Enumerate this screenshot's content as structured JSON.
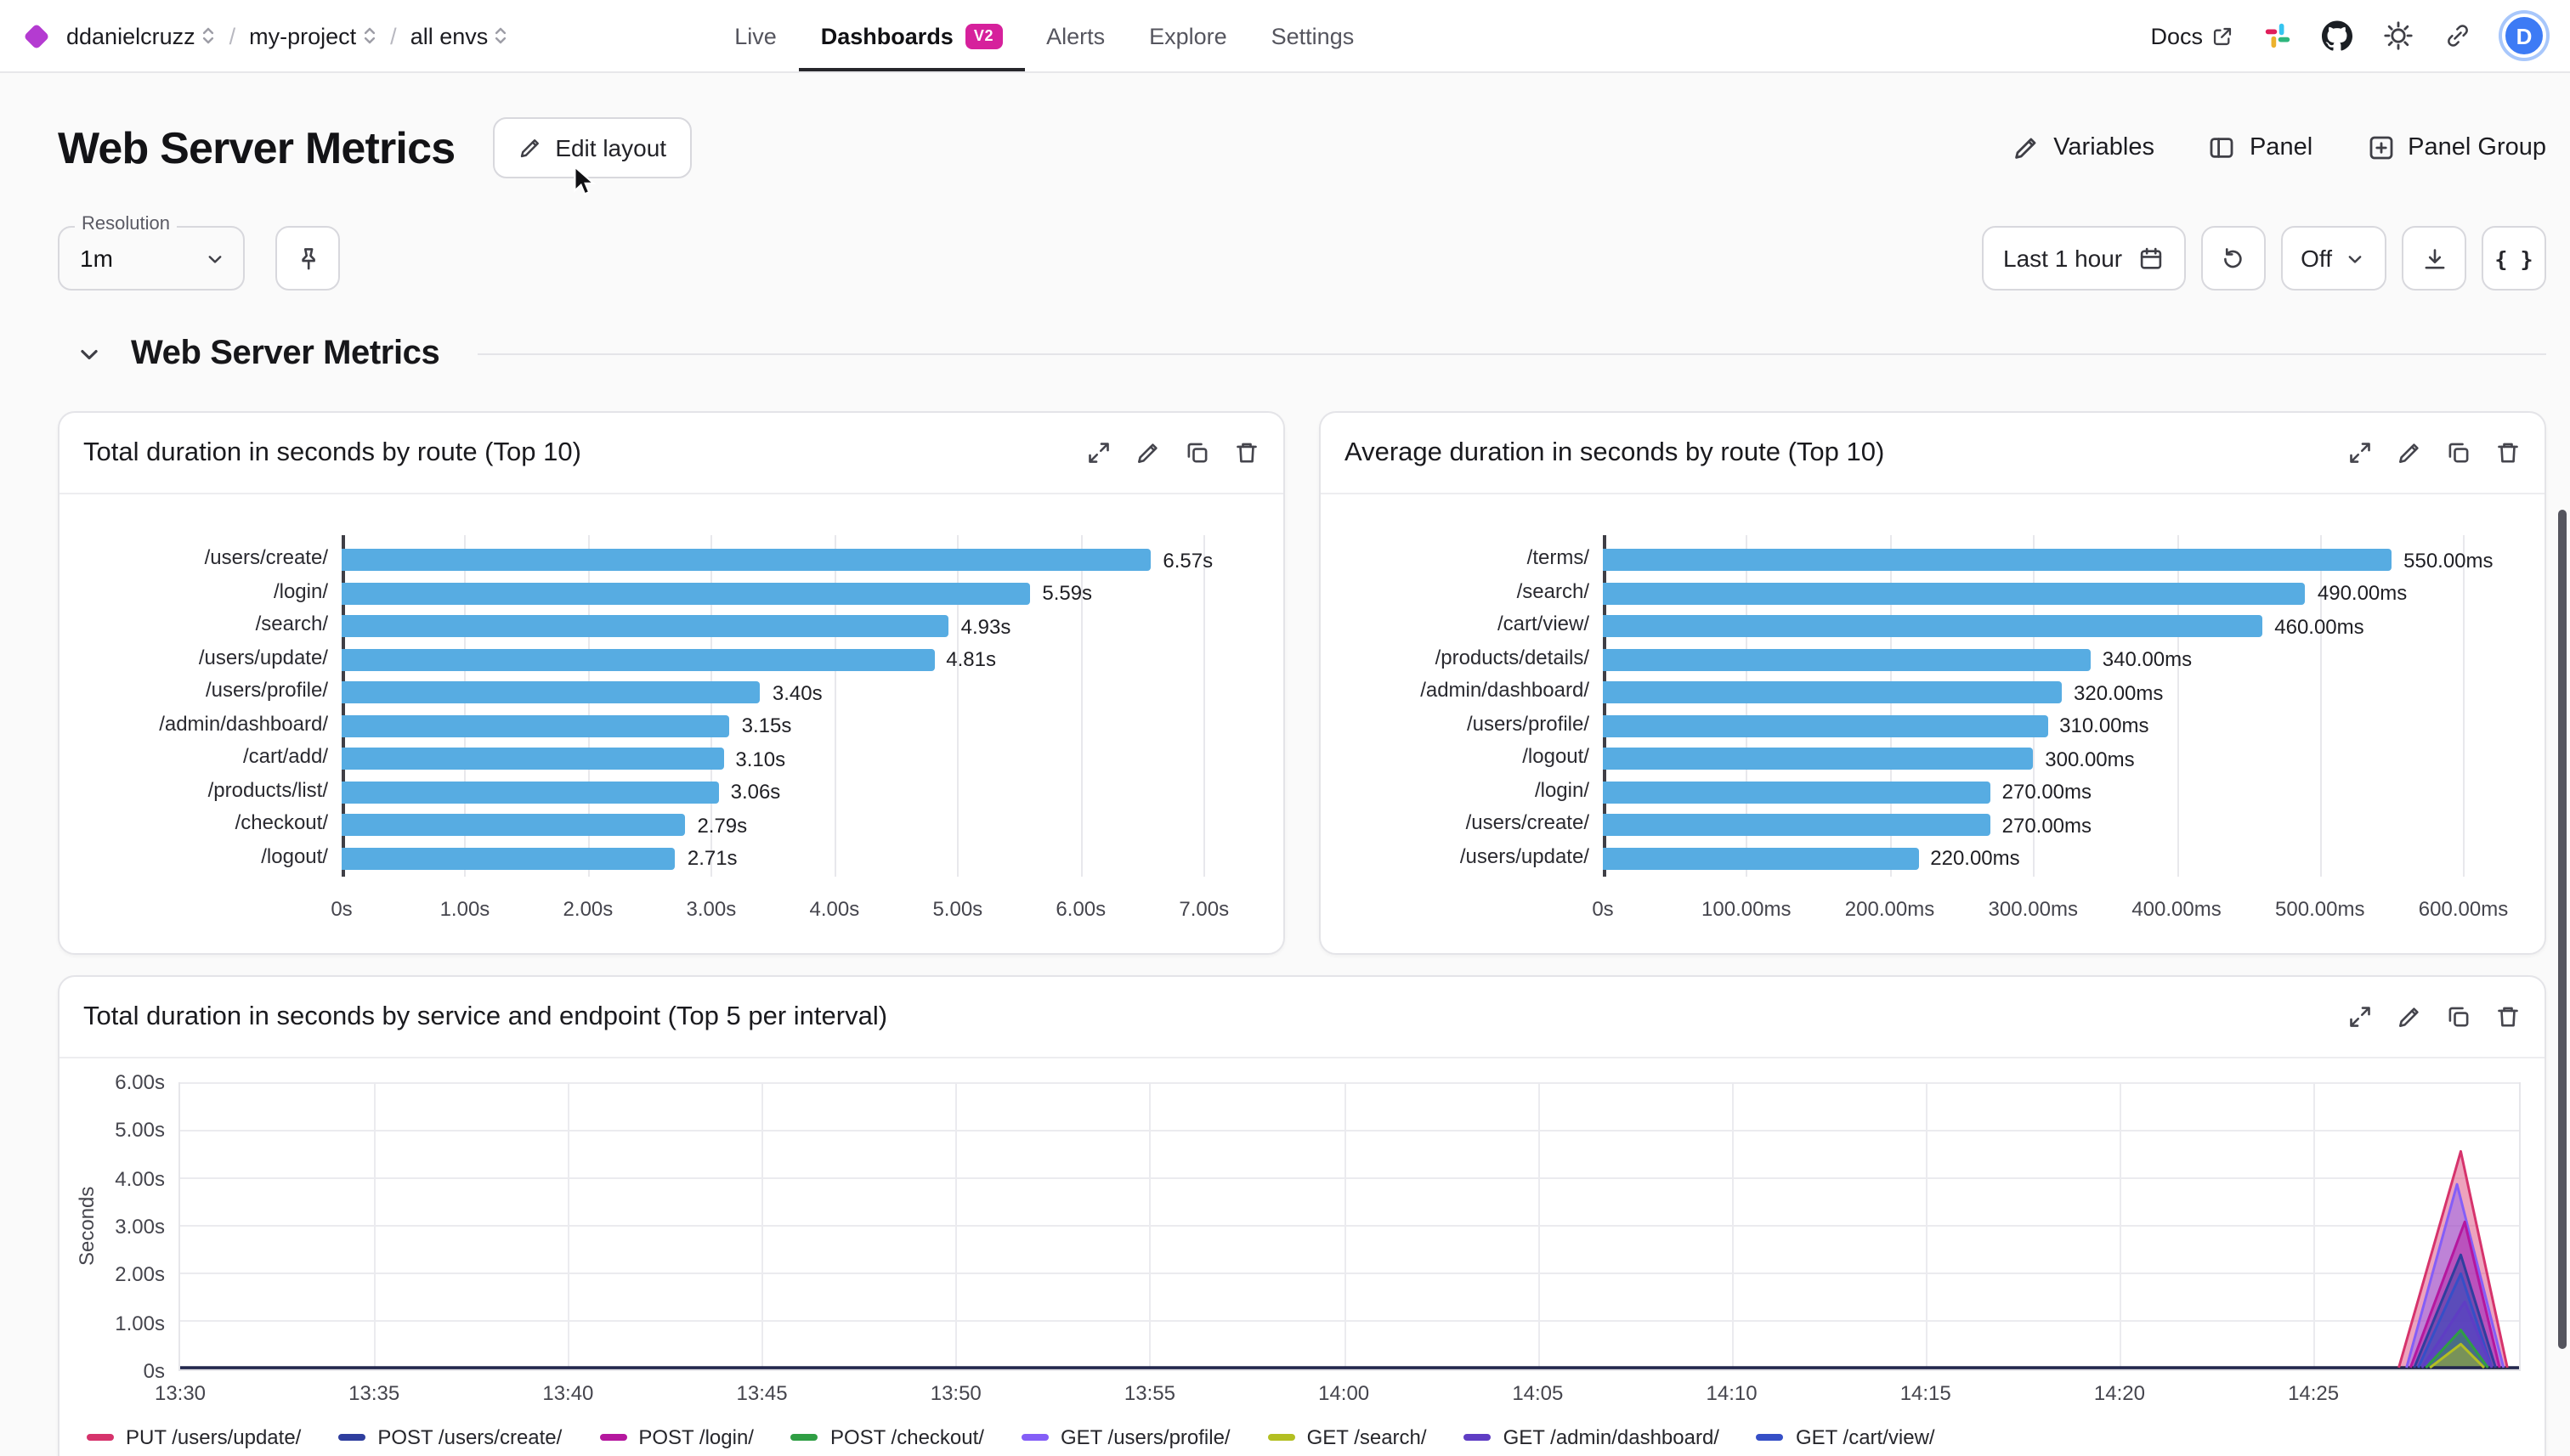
{
  "nav": {
    "breadcrumb": {
      "org": "ddanielcruzz",
      "project": "my-project",
      "env": "all envs",
      "separator": "/"
    },
    "tabs": [
      {
        "label": "Live",
        "active": false
      },
      {
        "label": "Dashboards",
        "active": true,
        "badge": "V2"
      },
      {
        "label": "Alerts",
        "active": false
      },
      {
        "label": "Explore",
        "active": false
      },
      {
        "label": "Settings",
        "active": false
      }
    ],
    "docs_label": "Docs",
    "avatar_initial": "D"
  },
  "header": {
    "title": "Web Server Metrics",
    "edit_layout": "Edit layout",
    "variables": "Variables",
    "panel": "Panel",
    "panel_group": "Panel Group"
  },
  "toolbar": {
    "resolution_label": "Resolution",
    "resolution_value": "1m",
    "time_range": "Last 1 hour",
    "refresh_mode": "Off",
    "code_button": "{ }"
  },
  "section_title": "Web Server Metrics",
  "icons": {
    "nav": [
      "docs-external-link-icon",
      "slack-icon",
      "github-icon",
      "theme-sun-icon",
      "copy-link-icon"
    ],
    "panel_actions": [
      "expand-icon",
      "edit-icon",
      "duplicate-icon",
      "delete-icon"
    ],
    "toolbar": [
      "pin-icon",
      "calendar-icon",
      "refresh-icon",
      "chevron-down-icon",
      "download-icon"
    ]
  },
  "colors": {
    "bar": "#57ace2",
    "badge": "#d6219c",
    "baseline": "#23284d"
  },
  "chart_data": [
    {
      "type": "bar",
      "orientation": "horizontal",
      "title": "Total duration in seconds by route (Top 10)",
      "categories": [
        "/users/create/",
        "/login/",
        "/search/",
        "/users/update/",
        "/users/profile/",
        "/admin/dashboard/",
        "/cart/add/",
        "/products/list/",
        "/checkout/",
        "/logout/"
      ],
      "values": [
        6.57,
        5.59,
        4.93,
        4.81,
        3.4,
        3.15,
        3.1,
        3.06,
        2.79,
        2.71
      ],
      "value_labels": [
        "6.57s",
        "5.59s",
        "4.93s",
        "4.81s",
        "3.40s",
        "3.15s",
        "3.10s",
        "3.06s",
        "2.79s",
        "2.71s"
      ],
      "x_ticks": [
        {
          "label": "0s",
          "value": 0
        },
        {
          "label": "1.00s",
          "value": 1
        },
        {
          "label": "2.00s",
          "value": 2
        },
        {
          "label": "3.00s",
          "value": 3
        },
        {
          "label": "4.00s",
          "value": 4
        },
        {
          "label": "5.00s",
          "value": 5
        },
        {
          "label": "6.00s",
          "value": 6
        },
        {
          "label": "7.00s",
          "value": 7
        }
      ],
      "x_max": 7.45,
      "bar_color": "#57ace2"
    },
    {
      "type": "bar",
      "orientation": "horizontal",
      "title": "Average duration in seconds by route (Top 10)",
      "categories": [
        "/terms/",
        "/search/",
        "/cart/view/",
        "/products/details/",
        "/admin/dashboard/",
        "/users/profile/",
        "/logout/",
        "/login/",
        "/users/create/",
        "/users/update/"
      ],
      "values": [
        550,
        490,
        460,
        340,
        320,
        310,
        300,
        270,
        270,
        220
      ],
      "value_labels": [
        "550.00ms",
        "490.00ms",
        "460.00ms",
        "340.00ms",
        "320.00ms",
        "310.00ms",
        "300.00ms",
        "270.00ms",
        "270.00ms",
        "220.00ms"
      ],
      "x_ticks": [
        {
          "label": "0s",
          "value": 0
        },
        {
          "label": "100.00ms",
          "value": 100
        },
        {
          "label": "200.00ms",
          "value": 200
        },
        {
          "label": "300.00ms",
          "value": 300
        },
        {
          "label": "400.00ms",
          "value": 400
        },
        {
          "label": "500.00ms",
          "value": 500
        },
        {
          "label": "600.00ms",
          "value": 600
        }
      ],
      "x_max": 640,
      "bar_color": "#57ace2"
    },
    {
      "type": "area",
      "title": "Total duration in seconds by service and endpoint (Top 5 per interval)",
      "ylabel": "Seconds",
      "y_max": 6,
      "y_ticks": [
        {
          "label": "0s",
          "value": 0
        },
        {
          "label": "1.00s",
          "value": 1
        },
        {
          "label": "2.00s",
          "value": 2
        },
        {
          "label": "3.00s",
          "value": 3
        },
        {
          "label": "4.00s",
          "value": 4
        },
        {
          "label": "5.00s",
          "value": 5
        },
        {
          "label": "6.00s",
          "value": 6
        }
      ],
      "x_ticks": [
        {
          "label": "13:30",
          "minute": 0
        },
        {
          "label": "13:35",
          "minute": 5
        },
        {
          "label": "13:40",
          "minute": 10
        },
        {
          "label": "13:45",
          "minute": 15
        },
        {
          "label": "13:50",
          "minute": 20
        },
        {
          "label": "13:55",
          "minute": 25
        },
        {
          "label": "14:00",
          "minute": 30
        },
        {
          "label": "14:05",
          "minute": 35
        },
        {
          "label": "14:10",
          "minute": 40
        },
        {
          "label": "14:15",
          "minute": 45
        },
        {
          "label": "14:20",
          "minute": 50
        },
        {
          "label": "14:25",
          "minute": 55
        }
      ],
      "x_domain_minutes": 60.3,
      "baseline_color": "#23284d",
      "series": [
        {
          "name": "PUT /users/update/",
          "color": "#d6336c",
          "spike": {
            "start": 57.2,
            "peak_x": 58.8,
            "end": 60.0,
            "peak": 4.6
          }
        },
        {
          "name": "POST /users/create/",
          "color": "#2f3e9e",
          "spike": {
            "start": 57.6,
            "peak_x": 58.8,
            "end": 59.7,
            "peak": 2.4
          }
        },
        {
          "name": "POST /login/",
          "color": "#b5179e",
          "spike": {
            "start": 57.5,
            "peak_x": 58.9,
            "end": 59.8,
            "peak": 3.1
          }
        },
        {
          "name": "POST /checkout/",
          "color": "#2f9e44",
          "spike": {
            "start": 57.9,
            "peak_x": 58.8,
            "end": 59.5,
            "peak": 0.8
          }
        },
        {
          "name": "GET /users/profile/",
          "color": "#845ef7",
          "spike": {
            "start": 57.4,
            "peak_x": 58.7,
            "end": 59.9,
            "peak": 3.9
          }
        },
        {
          "name": "GET /search/",
          "color": "#b3bf22",
          "spike": {
            "start": 58.0,
            "peak_x": 58.8,
            "end": 59.4,
            "peak": 0.5
          }
        },
        {
          "name": "GET /admin/dashboard/",
          "color": "#5f3dc4",
          "spike": {
            "start": 57.8,
            "peak_x": 58.9,
            "end": 59.6,
            "peak": 1.4
          }
        },
        {
          "name": "GET /cart/view/",
          "color": "#364fc7",
          "spike": {
            "start": 57.7,
            "peak_x": 58.8,
            "end": 59.6,
            "peak": 2.0
          }
        }
      ]
    }
  ]
}
